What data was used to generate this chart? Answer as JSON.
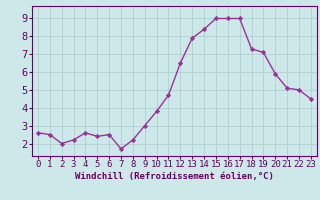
{
  "x": [
    0,
    1,
    2,
    3,
    4,
    5,
    6,
    7,
    8,
    9,
    10,
    11,
    12,
    13,
    14,
    15,
    16,
    17,
    18,
    19,
    20,
    21,
    22,
    23
  ],
  "y": [
    2.6,
    2.5,
    2.0,
    2.2,
    2.6,
    2.4,
    2.5,
    1.7,
    2.2,
    3.0,
    3.8,
    4.7,
    6.5,
    7.9,
    8.4,
    9.0,
    9.0,
    9.0,
    7.3,
    7.1,
    5.9,
    5.1,
    5.0,
    4.5
  ],
  "line_color": "#993399",
  "marker": "D",
  "marker_size": 2.2,
  "line_width": 1.0,
  "bg_color": "#cce8e8",
  "grid_color": "#aacccc",
  "xlabel": "Windchill (Refroidissement éolien,°C)",
  "ylabel": "",
  "xlim": [
    -0.5,
    23.5
  ],
  "ylim": [
    1.3,
    9.7
  ],
  "yticks": [
    2,
    3,
    4,
    5,
    6,
    7,
    8,
    9
  ],
  "xticks": [
    0,
    1,
    2,
    3,
    4,
    5,
    6,
    7,
    8,
    9,
    10,
    11,
    12,
    13,
    14,
    15,
    16,
    17,
    18,
    19,
    20,
    21,
    22,
    23
  ],
  "tick_label_color": "#660066",
  "axis_color": "#660066",
  "xlabel_color": "#660066",
  "xlabel_fontsize": 6.5,
  "tick_fontsize": 6.5,
  "ytick_fontsize": 7.5
}
